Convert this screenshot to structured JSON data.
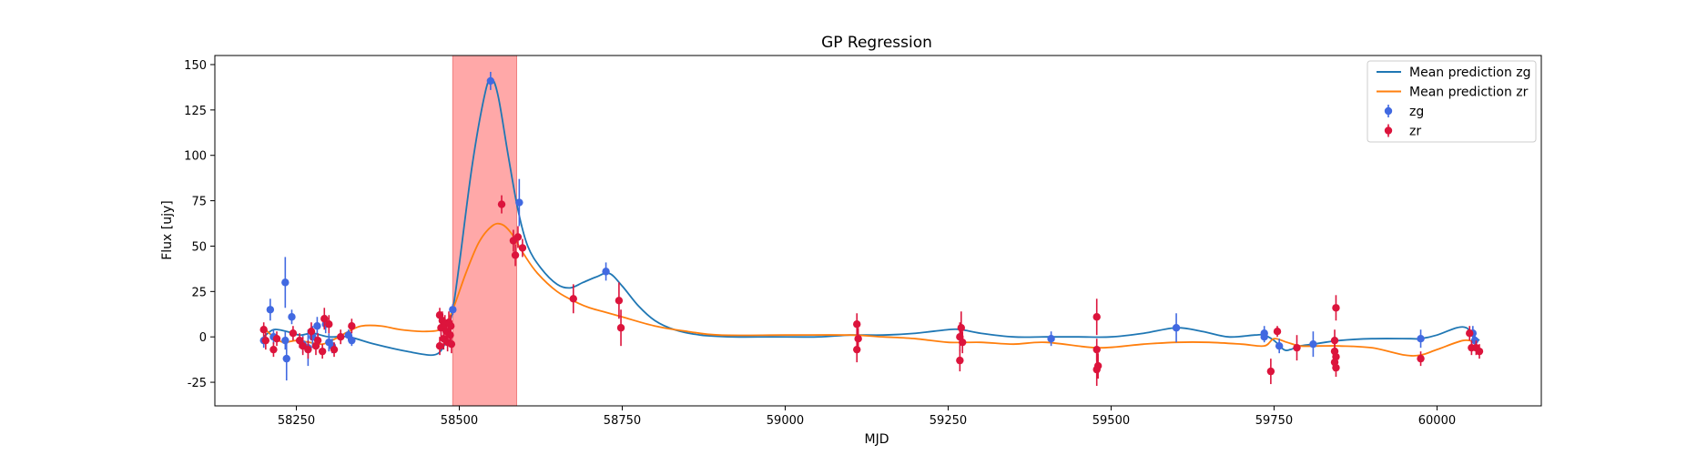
{
  "chart_data": {
    "type": "scatter",
    "title": "GP Regression",
    "xlabel": "MJD",
    "ylabel": "Flux [ujy]",
    "xlim": [
      58125,
      60160
    ],
    "ylim": [
      -38,
      155
    ],
    "xticks": [
      58250,
      58500,
      58750,
      59000,
      59250,
      59500,
      59750,
      60000
    ],
    "yticks": [
      -25,
      0,
      25,
      50,
      75,
      100,
      125,
      150
    ],
    "grid": false,
    "legend_position": "top-right",
    "highlight_span": {
      "x0": 58490,
      "x1": 58588,
      "color": "#ffa8a8"
    },
    "colors": {
      "zg_points": "#4169e1",
      "zr_points": "#dc143c",
      "zg_line": "#1f77b4",
      "zr_line": "#ff7f0e"
    },
    "legend": [
      {
        "label": "Mean prediction zg",
        "kind": "line",
        "color": "#1f77b4"
      },
      {
        "label": "Mean prediction zr",
        "kind": "line",
        "color": "#ff7f0e"
      },
      {
        "label": "zg",
        "kind": "errorbar",
        "color": "#4169e1"
      },
      {
        "label": "zr",
        "kind": "errorbar",
        "color": "#dc143c"
      }
    ],
    "lines": [
      {
        "name": "Mean prediction zg",
        "color": "#1f77b4",
        "x": [
          58200,
          58215,
          58235,
          58255,
          58275,
          58300,
          58330,
          58370,
          58420,
          58460,
          58475,
          58480,
          58490,
          58500,
          58520,
          58540,
          58550,
          58560,
          58575,
          58590,
          58605,
          58625,
          58650,
          58670,
          58690,
          58710,
          58730,
          58750,
          58775,
          58800,
          58830,
          58870,
          58920,
          58980,
          59050,
          59100,
          59150,
          59200,
          59250,
          59270,
          59300,
          59350,
          59400,
          59450,
          59500,
          59550,
          59600,
          59640,
          59680,
          59720,
          59735,
          59750,
          59765,
          59775,
          59790,
          59810,
          59850,
          59900,
          59960,
          59975,
          60000,
          60030,
          60045,
          60055,
          60065
        ],
        "y": [
          0,
          4,
          3,
          1,
          2,
          0,
          0,
          -4,
          -8,
          -10,
          -6,
          0,
          15,
          40,
          95,
          135,
          142,
          132,
          100,
          70,
          50,
          38,
          29,
          27,
          30,
          33,
          35,
          28,
          17,
          9,
          4,
          1,
          0,
          0,
          0,
          1,
          1,
          2,
          4,
          4,
          2,
          0,
          0,
          0,
          0,
          2,
          5,
          3,
          0,
          1,
          1,
          -2,
          -7,
          -7,
          -5,
          -4,
          -2,
          -1,
          -1,
          -1,
          1,
          5,
          5,
          1,
          -2
        ]
      },
      {
        "name": "Mean prediction zr",
        "color": "#ff7f0e",
        "x": [
          58200,
          58215,
          58230,
          58250,
          58270,
          58290,
          58310,
          58330,
          58350,
          58380,
          58410,
          58450,
          58475,
          58490,
          58510,
          58530,
          58550,
          58565,
          58580,
          58600,
          58620,
          58650,
          58680,
          58700,
          58720,
          58750,
          58800,
          58850,
          58900,
          59000,
          59100,
          59150,
          59200,
          59250,
          59300,
          59350,
          59400,
          59480,
          59550,
          59600,
          59650,
          59700,
          59735,
          59750,
          59770,
          59790,
          59820,
          59850,
          59900,
          59950,
          59975,
          60000,
          60040,
          60060
        ],
        "y": [
          5,
          0,
          -3,
          -2,
          -3,
          -4,
          -1,
          3,
          6,
          6,
          4,
          3,
          5,
          15,
          35,
          52,
          61,
          62,
          57,
          45,
          35,
          25,
          19,
          16,
          14,
          11,
          6,
          3,
          1,
          1,
          1,
          0,
          -1,
          -3,
          -3,
          -4,
          -3,
          -6,
          -4,
          -3,
          -3,
          -4,
          -5,
          -1,
          -3,
          -5,
          -5,
          -5,
          -6,
          -10,
          -10,
          -7,
          -2,
          -3
        ]
      }
    ],
    "series": [
      {
        "name": "zg",
        "color": "#4169e1",
        "points": [
          {
            "x": 58200,
            "y": -2,
            "err": 4
          },
          {
            "x": 58210,
            "y": 15,
            "err": 6
          },
          {
            "x": 58215,
            "y": 0,
            "err": 4
          },
          {
            "x": 58233,
            "y": 30,
            "err": 14
          },
          {
            "x": 58233,
            "y": -2,
            "err": 5
          },
          {
            "x": 58235,
            "y": -12,
            "err": 12
          },
          {
            "x": 58243,
            "y": 11,
            "err": 4
          },
          {
            "x": 58260,
            "y": -4,
            "err": 5
          },
          {
            "x": 58268,
            "y": -6,
            "err": 10
          },
          {
            "x": 58275,
            "y": 0,
            "err": 6
          },
          {
            "x": 58282,
            "y": 6,
            "err": 5
          },
          {
            "x": 58295,
            "y": 7,
            "err": 5
          },
          {
            "x": 58300,
            "y": -3,
            "err": 5
          },
          {
            "x": 58305,
            "y": -5,
            "err": 4
          },
          {
            "x": 58330,
            "y": 1,
            "err": 3
          },
          {
            "x": 58335,
            "y": -2,
            "err": 3
          },
          {
            "x": 58490,
            "y": 15,
            "err": 3
          },
          {
            "x": 58548,
            "y": 141,
            "err": 5
          },
          {
            "x": 58592,
            "y": 74,
            "err": 13
          },
          {
            "x": 58725,
            "y": 36,
            "err": 5
          },
          {
            "x": 59408,
            "y": -1,
            "err": 4
          },
          {
            "x": 59600,
            "y": 5,
            "err": 8
          },
          {
            "x": 59735,
            "y": 2,
            "err": 4
          },
          {
            "x": 59735,
            "y": 0,
            "err": 3
          },
          {
            "x": 59758,
            "y": -5,
            "err": 4
          },
          {
            "x": 59810,
            "y": -4,
            "err": 7
          },
          {
            "x": 59975,
            "y": -1,
            "err": 5
          },
          {
            "x": 60055,
            "y": 2,
            "err": 4
          },
          {
            "x": 60058,
            "y": -2,
            "err": 4
          }
        ]
      },
      {
        "name": "zr",
        "color": "#dc143c",
        "points": [
          {
            "x": 58200,
            "y": 4,
            "err": 4
          },
          {
            "x": 58203,
            "y": -2,
            "err": 5
          },
          {
            "x": 58215,
            "y": -7,
            "err": 4
          },
          {
            "x": 58220,
            "y": -1,
            "err": 4
          },
          {
            "x": 58245,
            "y": 2,
            "err": 4
          },
          {
            "x": 58255,
            "y": -2,
            "err": 4
          },
          {
            "x": 58260,
            "y": -5,
            "err": 5
          },
          {
            "x": 58268,
            "y": -7,
            "err": 5
          },
          {
            "x": 58273,
            "y": 3,
            "err": 5
          },
          {
            "x": 58280,
            "y": -5,
            "err": 5
          },
          {
            "x": 58283,
            "y": -2,
            "err": 4
          },
          {
            "x": 58290,
            "y": -8,
            "err": 4
          },
          {
            "x": 58293,
            "y": 10,
            "err": 6
          },
          {
            "x": 58300,
            "y": 7,
            "err": 5
          },
          {
            "x": 58308,
            "y": -7,
            "err": 4
          },
          {
            "x": 58318,
            "y": 0,
            "err": 4
          },
          {
            "x": 58335,
            "y": 6,
            "err": 4
          },
          {
            "x": 58470,
            "y": 12,
            "err": 4
          },
          {
            "x": 58472,
            "y": 5,
            "err": 6
          },
          {
            "x": 58474,
            "y": 9,
            "err": 5
          },
          {
            "x": 58476,
            "y": -1,
            "err": 6
          },
          {
            "x": 58478,
            "y": 7,
            "err": 5
          },
          {
            "x": 58470,
            "y": -5,
            "err": 5
          },
          {
            "x": 58480,
            "y": 3,
            "err": 6
          },
          {
            "x": 58482,
            "y": -3,
            "err": 5
          },
          {
            "x": 58484,
            "y": 8,
            "err": 6
          },
          {
            "x": 58486,
            "y": 1,
            "err": 5
          },
          {
            "x": 58488,
            "y": -4,
            "err": 5
          },
          {
            "x": 58487,
            "y": 6,
            "err": 6
          },
          {
            "x": 58565,
            "y": 73,
            "err": 5
          },
          {
            "x": 58583,
            "y": 53,
            "err": 6
          },
          {
            "x": 58586,
            "y": 45,
            "err": 6
          },
          {
            "x": 58590,
            "y": 55,
            "err": 6
          },
          {
            "x": 58597,
            "y": 49,
            "err": 5
          },
          {
            "x": 58675,
            "y": 21,
            "err": 8
          },
          {
            "x": 58745,
            "y": 20,
            "err": 10
          },
          {
            "x": 58748,
            "y": 5,
            "err": 10
          },
          {
            "x": 59110,
            "y": 7,
            "err": 6
          },
          {
            "x": 59112,
            "y": -1,
            "err": 6
          },
          {
            "x": 59110,
            "y": -7,
            "err": 7
          },
          {
            "x": 59270,
            "y": 5,
            "err": 9
          },
          {
            "x": 59268,
            "y": 0,
            "err": 8
          },
          {
            "x": 59272,
            "y": -3,
            "err": 6
          },
          {
            "x": 59268,
            "y": -13,
            "err": 6
          },
          {
            "x": 59478,
            "y": 11,
            "err": 10
          },
          {
            "x": 59478,
            "y": -7,
            "err": 6
          },
          {
            "x": 59480,
            "y": -16,
            "err": 7
          },
          {
            "x": 59478,
            "y": -18,
            "err": 9
          },
          {
            "x": 59745,
            "y": -19,
            "err": 7
          },
          {
            "x": 59755,
            "y": 3,
            "err": 3
          },
          {
            "x": 59785,
            "y": -6,
            "err": 7
          },
          {
            "x": 59845,
            "y": 16,
            "err": 7
          },
          {
            "x": 59843,
            "y": -2,
            "err": 6
          },
          {
            "x": 59843,
            "y": -8,
            "err": 5
          },
          {
            "x": 59845,
            "y": -11,
            "err": 5
          },
          {
            "x": 59843,
            "y": -14,
            "err": 5
          },
          {
            "x": 59845,
            "y": -17,
            "err": 5
          },
          {
            "x": 59975,
            "y": -12,
            "err": 4
          },
          {
            "x": 60050,
            "y": 2,
            "err": 4
          },
          {
            "x": 60053,
            "y": -6,
            "err": 4
          },
          {
            "x": 60060,
            "y": -6,
            "err": 4
          },
          {
            "x": 60065,
            "y": -8,
            "err": 4
          }
        ]
      }
    ]
  }
}
